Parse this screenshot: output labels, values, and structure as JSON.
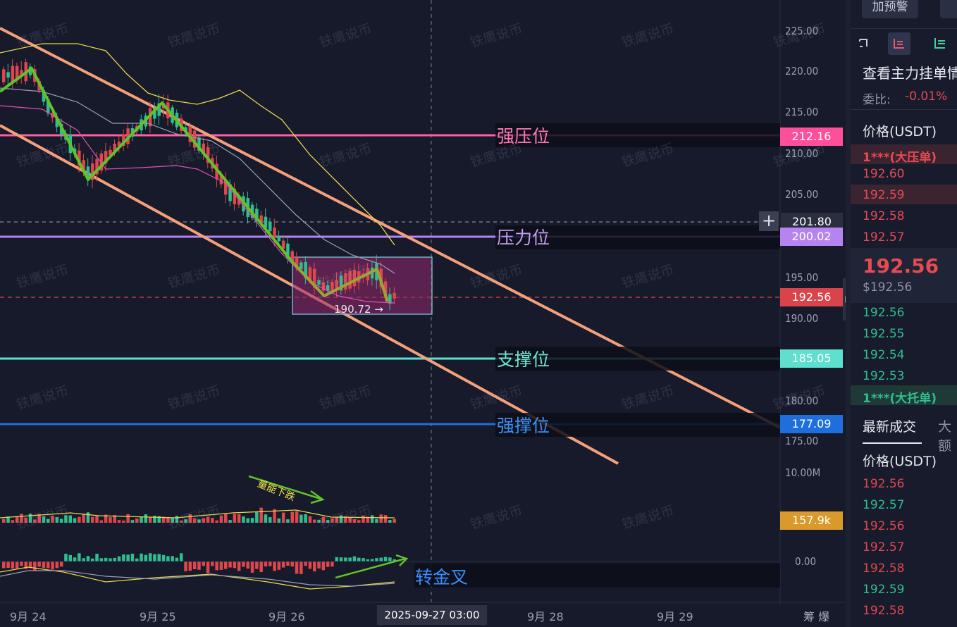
{
  "watermark": "铁鹰说币",
  "price_axis": {
    "labels": [
      "225.00",
      "220.00",
      "215.00",
      "210.00",
      "205.00",
      "195.00",
      "190.00",
      "180.00",
      "175.00"
    ],
    "volume_max": "10.00M",
    "macd_zero": "0.00"
  },
  "tags": {
    "strong_resistance": "212.16",
    "crosshair": "201.80",
    "resistance": "200.02",
    "current": "192.56",
    "support": "185.05",
    "strong_support": "177.09",
    "volume": "157.9k"
  },
  "levels": {
    "strong_resistance": "强压位",
    "resistance": "压力位",
    "support": "支撑位",
    "strong_support": "强撑位"
  },
  "annotations": {
    "volume_falling": "量能下跌",
    "golden_cross": "转金叉",
    "box_low": "190.72 →",
    "crosshair_plus": "+"
  },
  "time_axis": {
    "dates": [
      "9月 24",
      "9月 25",
      "9月 26",
      "9月 28",
      "9月 29"
    ],
    "crosshair_time": "2025-09-27 03:00",
    "right_labels": "筹  爆"
  },
  "sidebar": {
    "alert_button": "加预警",
    "title": "查看主力挂单情",
    "ratio_label": "委比:",
    "ratio_value": "-0.01%",
    "price_header": "价格(USDT)",
    "big_ask": "1***(大压单)",
    "asks": [
      "192.60",
      "192.59",
      "192.58",
      "192.57"
    ],
    "last_price": "192.56",
    "last_usd": "$192.56",
    "bids": [
      "192.56",
      "192.55",
      "192.54",
      "192.53"
    ],
    "big_bid": "1***(大托单)",
    "tab_latest": "最新成交",
    "tab_big": "大额",
    "trades_header": "价格(USDT)",
    "trades": [
      {
        "price": "192.56",
        "side": "sell"
      },
      {
        "price": "192.57",
        "side": "buy"
      },
      {
        "price": "192.56",
        "side": "sell"
      },
      {
        "price": "192.57",
        "side": "sell"
      },
      {
        "price": "192.58",
        "side": "sell"
      },
      {
        "price": "192.59",
        "side": "buy"
      },
      {
        "price": "192.58",
        "side": "sell"
      }
    ]
  },
  "colors": {
    "up": "#2fbf8f",
    "down": "#e0474c",
    "channel": "#f4a07a",
    "zigzag": "#63c12a",
    "strong_resistance": "#ff5fa2",
    "resistance": "#b684f0",
    "support": "#5fe0cf",
    "strong_support": "#1e6fdc"
  }
}
